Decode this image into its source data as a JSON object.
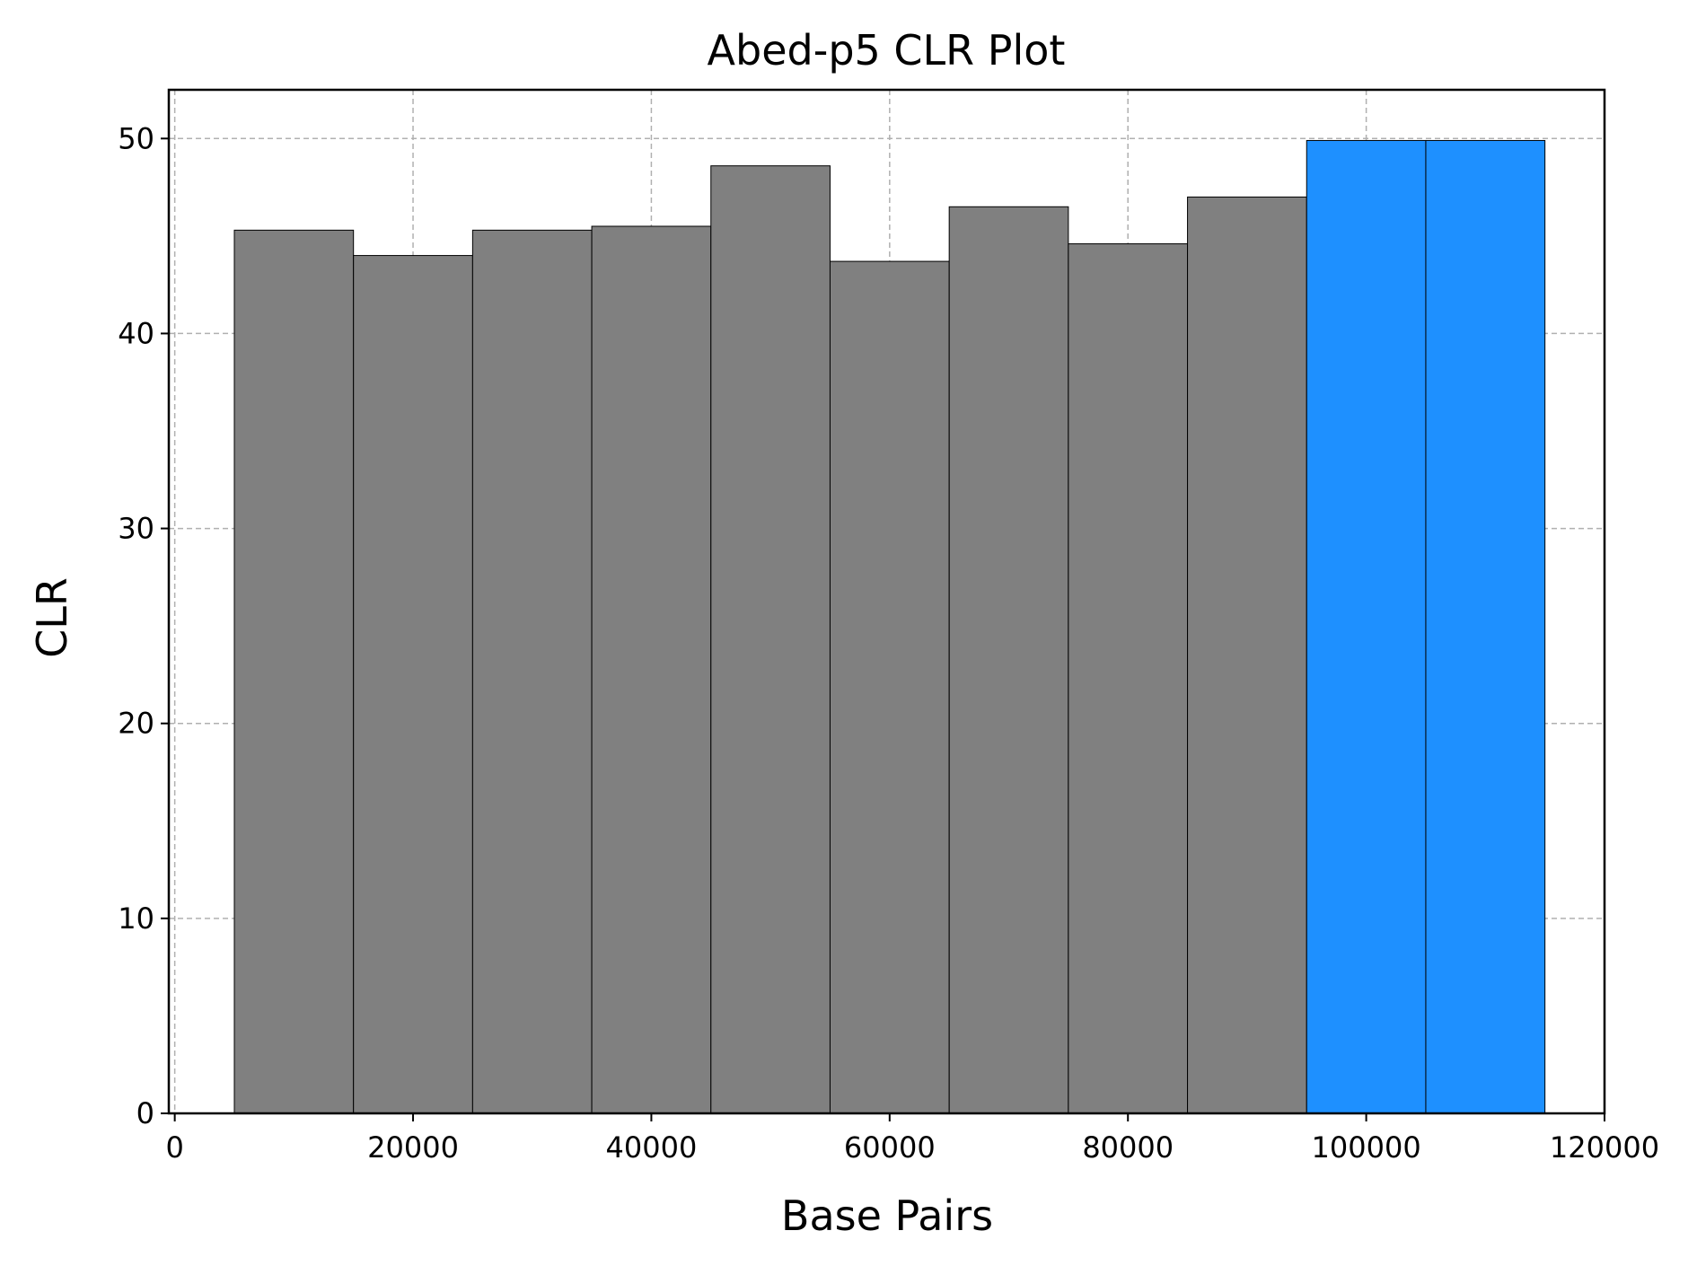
{
  "chart_data": {
    "type": "bar",
    "title": "Abed-p5 CLR Plot",
    "xlabel": "Base Pairs",
    "ylabel": "CLR",
    "xlim": [
      -500,
      120000
    ],
    "ylim": [
      0,
      52.5
    ],
    "xticks": [
      0,
      20000,
      40000,
      60000,
      80000,
      100000,
      120000
    ],
    "yticks": [
      0,
      10,
      20,
      30,
      40,
      50
    ],
    "grid": true,
    "bar_width": 10000,
    "bars": [
      {
        "x": 10000,
        "value": 45.3,
        "color": "#808080"
      },
      {
        "x": 20000,
        "value": 44.0,
        "color": "#808080"
      },
      {
        "x": 30000,
        "value": 45.3,
        "color": "#808080"
      },
      {
        "x": 40000,
        "value": 45.5,
        "color": "#808080"
      },
      {
        "x": 50000,
        "value": 48.6,
        "color": "#808080"
      },
      {
        "x": 60000,
        "value": 43.7,
        "color": "#808080"
      },
      {
        "x": 70000,
        "value": 46.5,
        "color": "#808080"
      },
      {
        "x": 80000,
        "value": 44.6,
        "color": "#808080"
      },
      {
        "x": 90000,
        "value": 47.0,
        "color": "#808080"
      },
      {
        "x": 100000,
        "value": 49.9,
        "color": "#1e90ff"
      },
      {
        "x": 110000,
        "value": 49.9,
        "color": "#1e90ff"
      }
    ]
  }
}
